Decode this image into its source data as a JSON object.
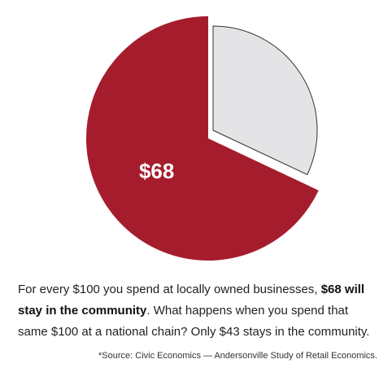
{
  "chart_data": {
    "type": "pie",
    "values": [
      68,
      32
    ],
    "value_labels": [
      "$68",
      null
    ],
    "colors": [
      "#a51d2d",
      "#e4e4e6"
    ],
    "caption": {
      "before": "For every $100 you spend at locally owned businesses, ",
      "bold": "$68 will stay in the community",
      "after": ". What happens when you spend that same $100 at a national chain? Only $43 stays in the community."
    },
    "source": "*Source: Civic Economics — Andersonville Study of Retail Economics."
  }
}
